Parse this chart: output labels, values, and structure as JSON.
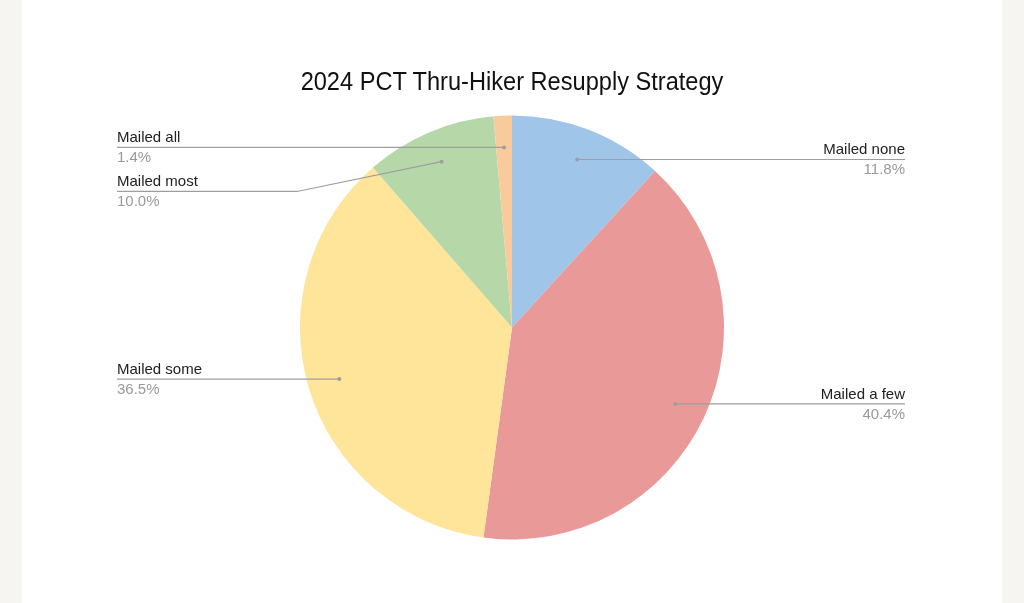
{
  "chart_data": {
    "type": "pie",
    "title": "2024 PCT Thru-Hiker Resupply Strategy",
    "categories": [
      "Mailed none",
      "Mailed a few",
      "Mailed some",
      "Mailed most",
      "Mailed all"
    ],
    "values": [
      11.8,
      40.4,
      36.5,
      10.0,
      1.4
    ],
    "colors": [
      "#9fc5e8",
      "#ea9999",
      "#ffe599",
      "#b6d7a8",
      "#f9cb9c"
    ],
    "value_labels": [
      "11.8%",
      "40.4%",
      "36.5%",
      "10.0%",
      "1.4%"
    ],
    "legend": false
  }
}
